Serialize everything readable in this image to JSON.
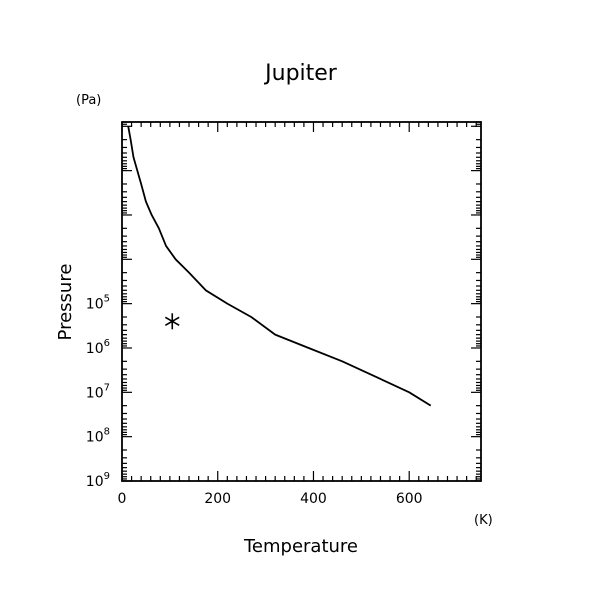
{
  "chart_data": {
    "type": "line",
    "title": "Jupiter",
    "xlabel": "Temperature",
    "ylabel": "Pressure",
    "xunit": "(K)",
    "yunit": "(Pa)",
    "xlim": [
      0,
      750
    ],
    "ylim": [
      8,
      1000000000
    ],
    "y_scale": "log",
    "y_reversed": true,
    "x_ticks": [
      0,
      200,
      400,
      600
    ],
    "y_ticks": [
      {
        "value": 100000,
        "base": "10",
        "exp": "5"
      },
      {
        "value": 1000000,
        "base": "10",
        "exp": "6"
      },
      {
        "value": 10000000,
        "base": "10",
        "exp": "7"
      },
      {
        "value": 100000000,
        "base": "10",
        "exp": "8"
      },
      {
        "value": 1000000000,
        "base": "10",
        "exp": "9"
      }
    ],
    "grid": false,
    "series": [
      {
        "x": [
          13,
          18,
          24,
          32,
          40,
          50,
          62,
          77,
          92,
          112,
          140,
          175,
          220,
          270,
          320,
          390,
          460,
          540,
          600,
          645
        ],
        "y": [
          10,
          20,
          50,
          100,
          200,
          500,
          1000,
          2000,
          5000,
          10000,
          20000,
          50000,
          100000,
          200000,
          500000,
          1000000,
          2000000,
          5000000,
          10000000,
          20000000
        ]
      }
    ],
    "marker": {
      "x": 105,
      "y": 250000,
      "symbol": "asterisk"
    }
  }
}
